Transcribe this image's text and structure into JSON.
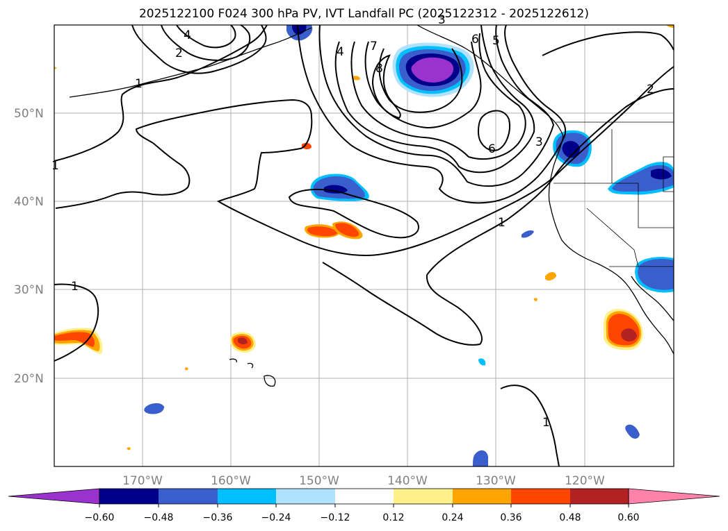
{
  "title": "2025122100 F024 300 hPa PV, IVT Landfall PC (2025122312 - 2025122612)",
  "colors": {
    "purple": "#9a32cd",
    "navy": "#00008b",
    "royal": "#3a5fcd",
    "sky": "#00bfff",
    "pale_blue": "#b0e2ff",
    "white": "#ffffff",
    "pale_yellow": "#fff08c",
    "orange": "#ffa500",
    "red_orange": "#ff4500",
    "firebrick": "#b22222",
    "pink": "#ff82ab",
    "grid": "#b0b0b0",
    "contour": "#000000"
  },
  "lat_labels": [
    "50°N",
    "40°N",
    "30°N",
    "20°N"
  ],
  "lon_labels": [
    "170°W",
    "160°W",
    "150°W",
    "140°W",
    "130°W",
    "120°W"
  ],
  "colorbar": {
    "ticks": [
      "−0.60",
      "−0.48",
      "−0.36",
      "−0.24",
      "−0.12",
      "0.12",
      "0.24",
      "0.36",
      "0.48",
      "0.60"
    ],
    "levels": [
      -0.6,
      -0.48,
      -0.36,
      -0.24,
      -0.12,
      0.12,
      0.24,
      0.36,
      0.48,
      0.6
    ]
  },
  "contour_labels": [
    "1",
    "2",
    "3",
    "4",
    "5",
    "6",
    "7",
    "8",
    "1",
    "2",
    "3",
    "4",
    "6",
    "1",
    "1",
    "1"
  ]
}
